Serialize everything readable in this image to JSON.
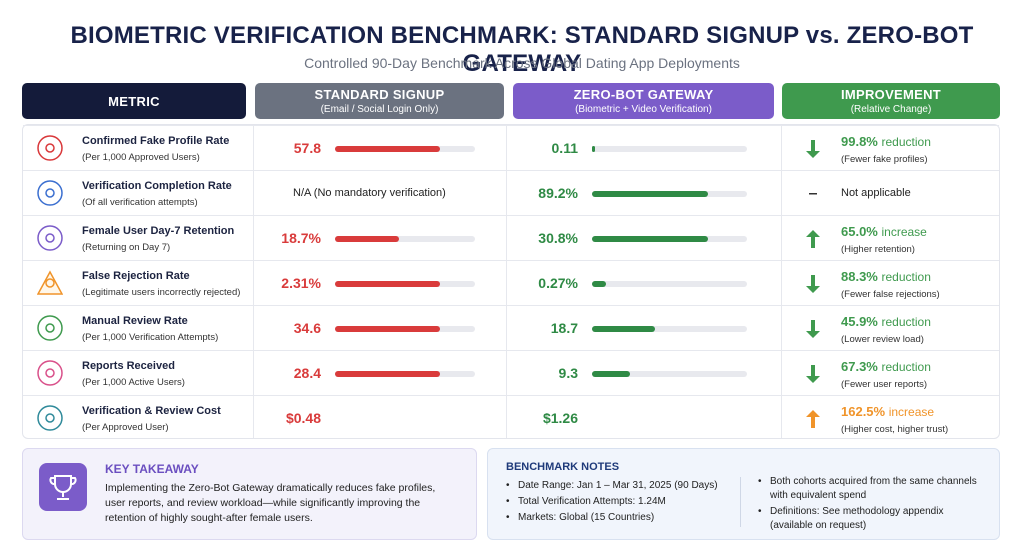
{
  "header": {
    "title": "BIOMETRIC VERIFICATION BENCHMARK: STANDARD SIGNUP vs. ZERO-BOT GATEWAY",
    "subtitle": "Controlled 90-Day Benchmark Across Global Dating App Deployments"
  },
  "table": {
    "columns": [
      {
        "title": "METRIC",
        "color": "#141b3a"
      },
      {
        "title": "STANDARD SIGNUP",
        "sub": "(Email / Social Login Only)",
        "color": "#6b7280"
      },
      {
        "title": "ZERO-BOT GATEWAY",
        "sub": "(Biometric + Video Verification)",
        "color": "#7b5cc9"
      },
      {
        "title": "IMPROVEMENT",
        "sub": "(Relative Change)",
        "color": "#3f9a4e"
      }
    ],
    "rows": [
      {
        "metric": "Confirmed Fake Profile Rate",
        "sub": "(Per 1,000 Approved Users)",
        "standard": {
          "value": 57.8,
          "label": "57.8"
        },
        "zero_bot": {
          "value": 0.11,
          "label": "0.11"
        },
        "improvement": {
          "value": "99.8%",
          "word": "reduction",
          "note": "(Fewer fake profiles)",
          "arrow": "down",
          "color": "#3f9a4e"
        }
      },
      {
        "metric": "Verification Completion Rate",
        "sub": "(Of all verification attempts)",
        "standard": {
          "text": "N/A (No mandatory verification)"
        },
        "zero_bot": {
          "value": 89.2,
          "label": "89.2%"
        },
        "improvement": {
          "text": "Not applicable",
          "arrow": "none",
          "color": "#222222"
        }
      },
      {
        "metric": "Female User Day-7 Retention",
        "sub": "(Returning on Day 7)",
        "standard": {
          "value": 18.7,
          "label": "18.7%"
        },
        "zero_bot": {
          "value": 30.8,
          "label": "30.8%"
        },
        "improvement": {
          "value": "65.0%",
          "word": "increase",
          "note": "(Higher retention)",
          "arrow": "up",
          "color": "#3f9a4e"
        }
      },
      {
        "metric": "False Rejection Rate",
        "sub": "(Legitimate users incorrectly rejected)",
        "standard": {
          "value": 2.31,
          "label": "2.31%"
        },
        "zero_bot": {
          "value": 0.27,
          "label": "0.27%"
        },
        "improvement": {
          "value": "88.3%",
          "word": "reduction",
          "note": "(Fewer false rejections)",
          "arrow": "down",
          "color": "#3f9a4e"
        }
      },
      {
        "metric": "Manual Review Rate",
        "sub": "(Per 1,000 Verification Attempts)",
        "standard": {
          "value": 34.6,
          "label": "34.6"
        },
        "zero_bot": {
          "value": 18.7,
          "label": "18.7"
        },
        "improvement": {
          "value": "45.9%",
          "word": "reduction",
          "note": "(Lower review load)",
          "arrow": "down",
          "color": "#3f9a4e"
        }
      },
      {
        "metric": "Reports Received",
        "sub": "(Per 1,000 Active Users)",
        "standard": {
          "value": 28.4,
          "label": "28.4"
        },
        "zero_bot": {
          "value": 9.3,
          "label": "9.3"
        },
        "improvement": {
          "value": "67.3%",
          "word": "reduction",
          "note": "(Fewer user reports)",
          "arrow": "down",
          "color": "#3f9a4e"
        }
      },
      {
        "metric": "Verification & Review Cost",
        "sub": "(Per Approved User)",
        "standard": {
          "label": "$0.48"
        },
        "zero_bot": {
          "label": "$1.26"
        },
        "improvement": {
          "value": "162.5%",
          "word": "increase",
          "note": "(Higher cost, higher trust)",
          "arrow": "up",
          "color": "#f0942a"
        }
      }
    ],
    "standard_color": "#d93b3b",
    "zero_bot_color": "#2f8a45"
  },
  "takeaway": {
    "title": "KEY TAKEAWAY",
    "text": "Implementing the Zero-Bot Gateway dramatically reduces fake profiles, user reports, and review workload—while significantly improving the retention of highly sought-after female users."
  },
  "notes": {
    "title": "BENCHMARK NOTES",
    "left": [
      "Date Range: Jan 1 – Mar 31, 2025 (90 Days)",
      "Total Verification Attempts: 1.24M",
      "Markets: Global (15 Countries)"
    ],
    "right": [
      "Both cohorts acquired from the same channels with equivalent spend",
      "Definitions: See methodology appendix (available on request)"
    ]
  }
}
